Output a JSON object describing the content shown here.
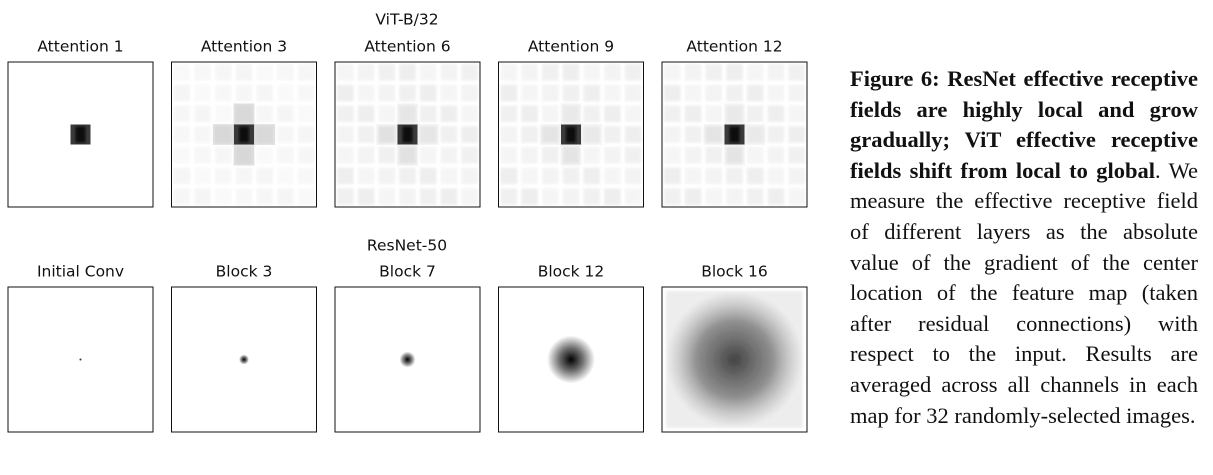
{
  "figure": {
    "groups": [
      {
        "title": "ViT-B/32",
        "panels": [
          "Attention 1",
          "Attention 3",
          "Attention 6",
          "Attention 9",
          "Attention 12"
        ]
      },
      {
        "title": "ResNet-50",
        "panels": [
          "Initial Conv",
          "Block 3",
          "Block 7",
          "Block 12",
          "Block 16"
        ]
      }
    ]
  },
  "caption": {
    "label": "Figure 6:",
    "bold": "ResNet effective receptive fields are highly local and grow gradually; ViT effective receptive fields shift from local to global",
    "text": ". We measure the effective receptive field of different layers as the absolute value of the gradient of the center location of the feature map (taken after residual connections) with respect to the input. Results are averaged across all channels in each map for 32 randomly-selected images."
  }
}
